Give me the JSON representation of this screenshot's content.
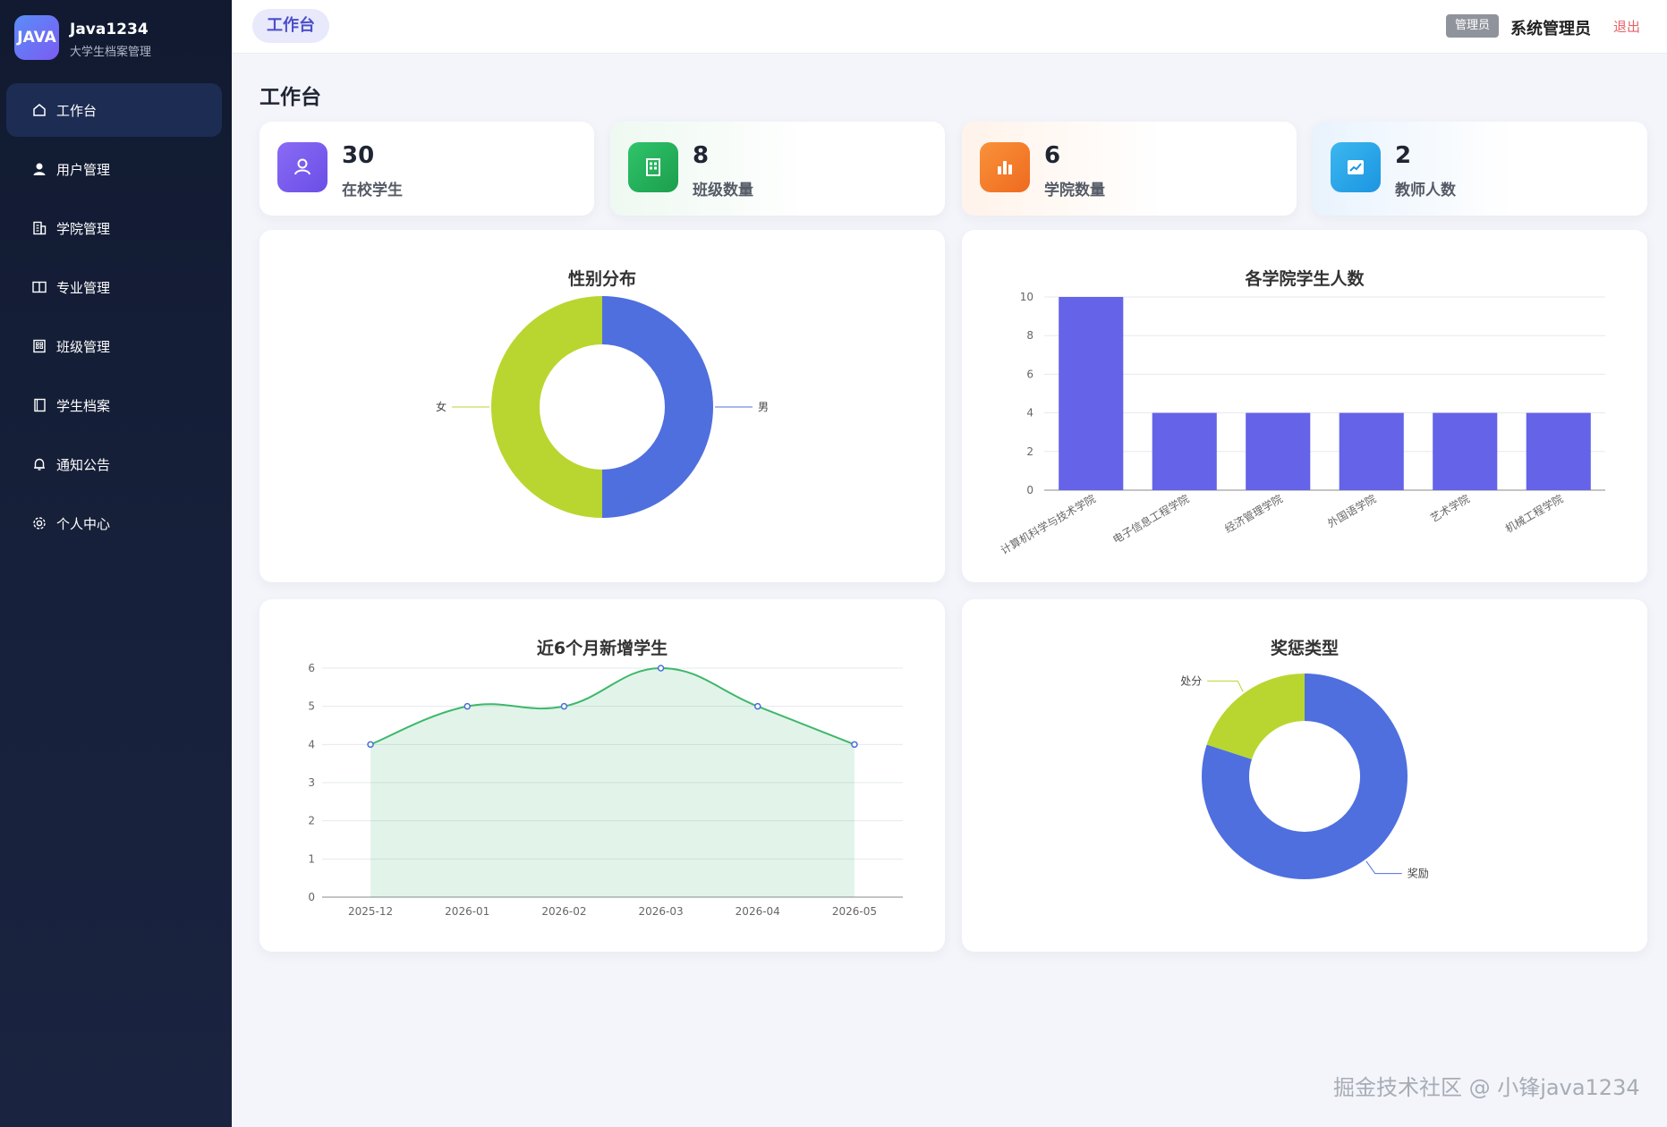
{
  "brand": {
    "logo_text": "JAVA",
    "name": "Java1234",
    "subtitle": "大学生档案管理"
  },
  "sidebar": {
    "items": [
      {
        "label": "工作台",
        "icon": "home-icon",
        "active": true
      },
      {
        "label": "用户管理",
        "icon": "user-icon"
      },
      {
        "label": "学院管理",
        "icon": "building-icon"
      },
      {
        "label": "专业管理",
        "icon": "book-icon"
      },
      {
        "label": "班级管理",
        "icon": "office-icon"
      },
      {
        "label": "学生档案",
        "icon": "notebook-icon"
      },
      {
        "label": "通知公告",
        "icon": "bell-icon"
      },
      {
        "label": "个人中心",
        "icon": "gear-icon"
      }
    ]
  },
  "header": {
    "tab": "工作台",
    "role_badge": "管理员",
    "user_name": "系统管理员",
    "logout": "退出"
  },
  "page_title": "工作台",
  "stats": [
    {
      "value": "30",
      "label": "在校学生",
      "icon": "user-icon",
      "color": "#7b5cf0"
    },
    {
      "value": "8",
      "label": "班级数量",
      "icon": "building-icon",
      "color": "#22b05a"
    },
    {
      "value": "6",
      "label": "学院数量",
      "icon": "bar-chart-icon",
      "color": "#f47c2a"
    },
    {
      "value": "2",
      "label": "教师人数",
      "icon": "trend-icon",
      "color": "#2ea7ea"
    }
  ],
  "chart_data": [
    {
      "type": "pie",
      "title": "性别分布",
      "labels": [
        "男",
        "女"
      ],
      "values": [
        50,
        50
      ],
      "colors": [
        "#4f6fdf",
        "#b9d630"
      ],
      "donut": true
    },
    {
      "type": "bar",
      "title": "各学院学生人数",
      "categories": [
        "计算机科学与技术学院",
        "电子信息工程学院",
        "经济管理学院",
        "外国语学院",
        "艺术学院",
        "机械工程学院"
      ],
      "values": [
        10,
        4,
        4,
        4,
        4,
        4
      ],
      "ylim": [
        0,
        10
      ],
      "yticks": [
        0,
        2,
        4,
        6,
        8,
        10
      ],
      "color": "#6563e8",
      "grid": true
    },
    {
      "type": "area",
      "title": "近6个月新增学生",
      "x": [
        "2025-12",
        "2026-01",
        "2026-02",
        "2026-03",
        "2026-04",
        "2026-05"
      ],
      "values": [
        4,
        5,
        5,
        6,
        5,
        4
      ],
      "ylim": [
        0,
        6
      ],
      "yticks": [
        0,
        1,
        2,
        3,
        4,
        5,
        6
      ],
      "color": "#3db86a",
      "grid": true
    },
    {
      "type": "pie",
      "title": "奖惩类型",
      "labels": [
        "奖励",
        "处分"
      ],
      "values": [
        80,
        20
      ],
      "colors": [
        "#4f6fdf",
        "#b9d630"
      ],
      "donut": true
    }
  ],
  "watermark": "掘金技术社区 @ 小锋java1234"
}
